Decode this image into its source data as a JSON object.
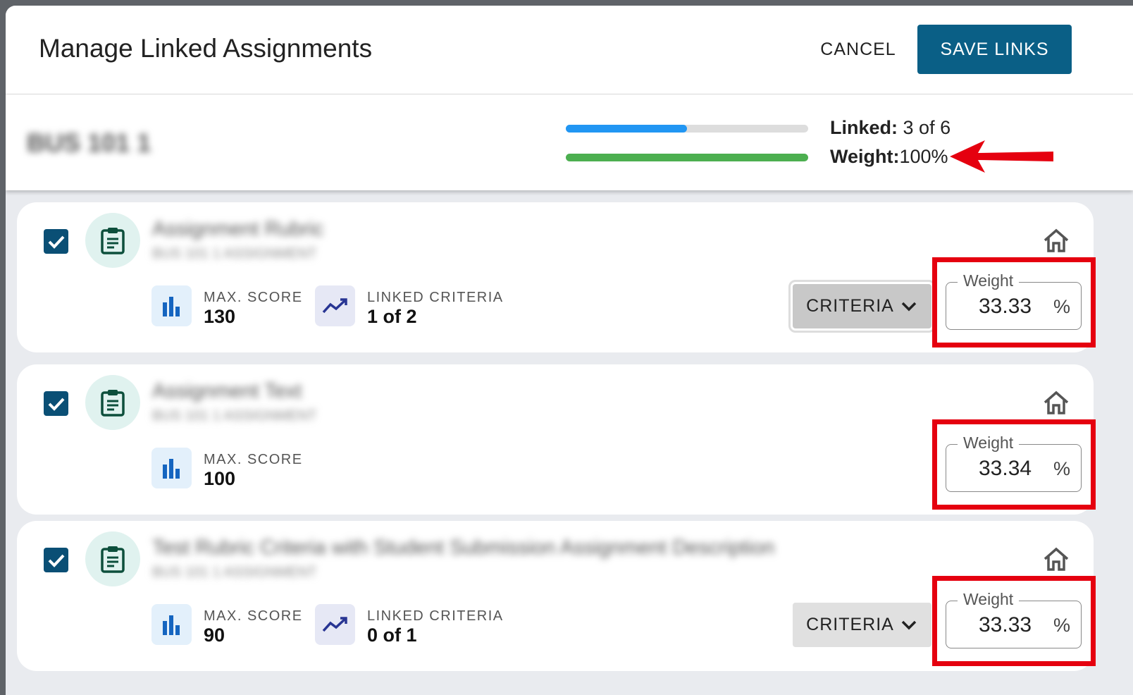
{
  "header": {
    "title": "Manage Linked Assignments",
    "cancel": "CANCEL",
    "save": "SAVE LINKS"
  },
  "summary": {
    "course": "BUS 101 1",
    "linked_label": "Linked:",
    "linked_value": "3 of 6",
    "weight_label": "Weight:",
    "weight_value": "100%"
  },
  "assignments": [
    {
      "name": "Assignment Rubric",
      "subtitle": "BUS 101 1 ASSIGNMENT",
      "max_score_label": "MAX. SCORE",
      "max_score": 130,
      "criteria_label": "LINKED CRITERIA",
      "criteria": "1 of 2",
      "criteria_button": "CRITERIA",
      "weight_label": "Weight",
      "weight": 33.33,
      "unit": "%"
    },
    {
      "name": "Assignment Text",
      "subtitle": "BUS 101 1 ASSIGNMENT",
      "max_score_label": "MAX. SCORE",
      "max_score": 100,
      "weight_label": "Weight",
      "weight": 33.34,
      "unit": "%"
    },
    {
      "name": "Test Rubric Criteria with Student Submission Assignment Description",
      "subtitle": "BUS 101 1 ASSIGNMENT",
      "max_score_label": "MAX. SCORE",
      "max_score": 90,
      "criteria_label": "LINKED CRITERIA",
      "criteria": "0 of 1",
      "criteria_button": "CRITERIA",
      "weight_label": "Weight",
      "weight": 33.33,
      "unit": "%"
    }
  ]
}
